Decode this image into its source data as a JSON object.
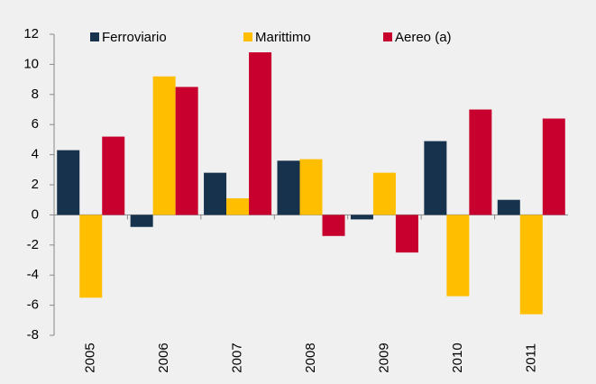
{
  "chart_data": {
    "type": "bar",
    "categories": [
      "2005",
      "2006",
      "2007",
      "2008",
      "2009",
      "2010",
      "2011"
    ],
    "series": [
      {
        "name": "Ferroviario",
        "color": "#17324d",
        "values": [
          4.3,
          -0.8,
          2.8,
          3.6,
          -0.3,
          4.9,
          1.0
        ]
      },
      {
        "name": "Marittimo",
        "color": "#ffbf00",
        "values": [
          -5.5,
          9.2,
          1.1,
          3.7,
          2.8,
          -5.4,
          -6.6
        ]
      },
      {
        "name": "Aereo (a)",
        "color": "#c8002d",
        "values": [
          5.2,
          8.5,
          10.8,
          -1.4,
          -2.5,
          7.0,
          6.4
        ]
      }
    ],
    "ylim": [
      -8,
      12
    ],
    "yticks": [
      -8,
      -6,
      -4,
      -2,
      0,
      2,
      4,
      6,
      8,
      10,
      12
    ],
    "grid": false,
    "legend": "top"
  }
}
